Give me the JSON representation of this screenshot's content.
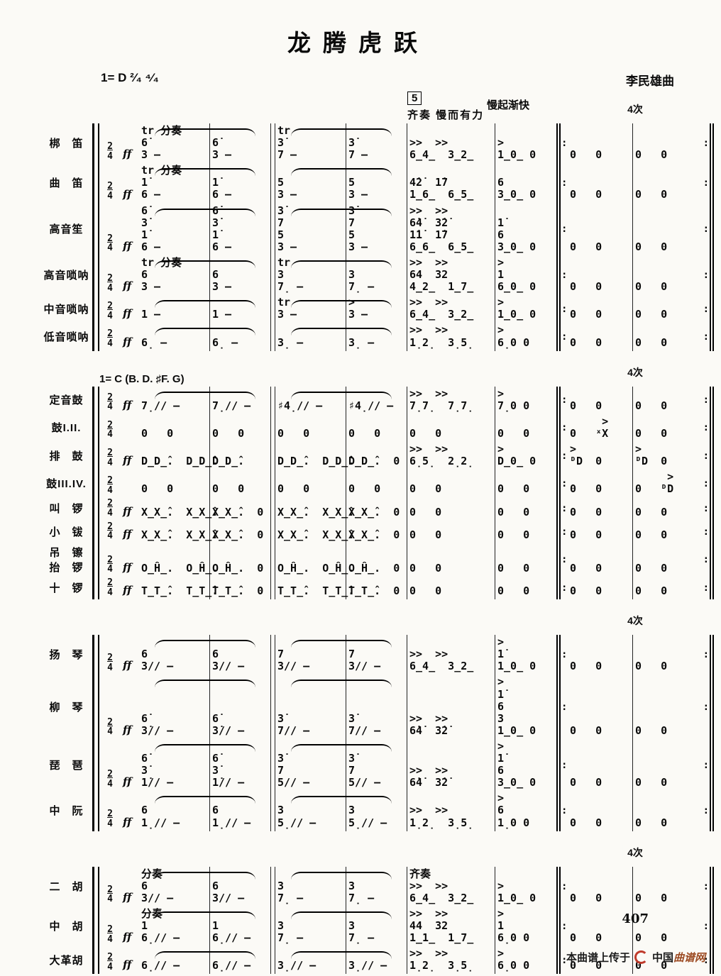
{
  "page": {
    "title": "龙腾虎跃",
    "key_signature": "1= D  ²⁄₄ ⁴⁄₄",
    "composer": "李民雄曲",
    "repeat_dots": ":",
    "page_number": "407",
    "footer_text": "本曲谱上传于",
    "site_prefix": "中国",
    "site_suffix": "曲谱网",
    "brand_color": "#bf3a2b",
    "ink_color": "#0a0a0a"
  },
  "groups": [
    {
      "rehearsal": "5",
      "tutti": "齐奏  慢而有力",
      "tempo": "慢起渐快",
      "times": "4次",
      "rows": [
        {
          "name": "梆　笛",
          "type": "melody",
          "sig": "2\n4",
          "dyn": "ff",
          "c1": "tr 分奏\n6̇\n3 –",
          "c2": "6̇\n3 –",
          "c3": "tr\n3̇\n7 –",
          "c4": "3̇\n7 –",
          "c5": ">>  >>\n6̲4̲  3̲2̲",
          "c6": ">\n1̲0̲ 0",
          "c7": "0   0",
          "c8": "0   0"
        },
        {
          "name": "曲　笛",
          "type": "melody",
          "sig": "2\n4",
          "dyn": "ff",
          "c1": "tr 分奏\n1̇\n6 –",
          "c2": "1̇\n6 –",
          "c3": "5\n3 –",
          "c4": "5\n3 –",
          "c5": "4̇2̇  1̇7\n1̲6̲  6̲5̲",
          "c6": "6\n3̲0̲ 0",
          "c7": "0   0",
          "c8": "0   0"
        },
        {
          "name": "高音笙",
          "type": "melody",
          "sig": "2\n4",
          "dyn": "ff",
          "c1": "6̇\n3̇\n1̇\n6 –",
          "c2": "6̇\n3̇\n1̇\n6 –",
          "c3": "3̇\n7\n5\n3 –",
          "c4": "3̇\n7\n5\n3 –",
          "c5": ">>  >>\n6̇4̇  3̇2̇\n1̇1̇  1̇7\n6̲6̲  6̲5̲",
          "c6": "1̇\n6\n3̲0̲ 0",
          "c7": "0   0",
          "c8": "0   0"
        },
        {
          "name": "高音唢呐",
          "type": "melody",
          "sig": "2\n4",
          "dyn": "ff",
          "c1": "tr 分奏\n6\n3 –",
          "c2": "6\n3 –",
          "c3": "tr\n3\n7̣ –",
          "c4": "3\n7̣ –",
          "c5": ">>  >>\n64  32\n4̲2̲  1̲7̲",
          "c6": ">\n1\n6̲0̲ 0",
          "c7": "0   0",
          "c8": "0   0"
        },
        {
          "name": "中音唢呐",
          "type": "melody",
          "sig": "2\n4",
          "dyn": "ff",
          "c1": "1 –",
          "c2": "1 –",
          "c3": "tr\n3 –",
          "c4": ">\n3 –",
          "c5": ">>  >>\n6̲4̲  3̲2̲",
          "c6": ">\n1̲0̲ 0",
          "c7": "0   0",
          "c8": "0   0"
        },
        {
          "name": "低音唢呐",
          "type": "melody",
          "sig": "2\n4",
          "dyn": "ff",
          "c1": "6̣ –",
          "c2": "6̣ –",
          "c3": "3̣ –",
          "c4": "3̣ –",
          "c5": ">>  >>\n1̣2̣  3̣5̣",
          "c6": ">\n6̣0 0",
          "c7": "0   0",
          "c8": "0   0"
        }
      ]
    },
    {
      "key": "1= C (B. D. ♯F. G)",
      "times": "4次",
      "rows": [
        {
          "name": "定音鼓",
          "type": "melody",
          "sig": "2\n4",
          "dyn": "ff",
          "c1": "7̣∕∕ –",
          "c2": "7̣∕∕ –",
          "c3": "♯4̣∕∕ –",
          "c4": "♯4̣∕∕ –",
          "c5": ">>  >>\n7̣7̣  7̣7̣",
          "c6": ">\n7̣0 0",
          "c7": "0   0",
          "c8": "0   0"
        },
        {
          "name": "鼓I.II.",
          "type": "perc",
          "sig": "2\n4",
          "dyn": "",
          "c1": "0   0",
          "c2": "0   0",
          "c3": "0   0",
          "c4": "0   0",
          "c5": "0   0",
          "c6": "0   0",
          "c7": "     >\n0   ˣX",
          "c8": "0   0"
        },
        {
          "name": "排　鼓",
          "type": "perc",
          "sig": "2\n4",
          "dyn": "ff",
          "c1": "D̲D̲̂.  D̲D̲̂.",
          "c2": "D̲D̲̂.",
          "c3": "D̲D̲̂.  D̲D̲̂.",
          "c4": "D̲D̲̂.  0",
          "c5": ">>  >>\n6̣5̣  2̣2̣",
          "c6": ">\nD̲0̲ 0",
          "c7": ">\nᴰD  0",
          "c8": ">\nᴰD  0"
        },
        {
          "name": "鼓III.IV.",
          "type": "perc",
          "sig": "2\n4",
          "dyn": "",
          "c1": "0   0",
          "c2": "0   0",
          "c3": "0   0",
          "c4": "0   0",
          "c5": "0   0",
          "c6": "0   0",
          "c7": "0   0",
          "c8": "     >\n0   ᴰD"
        },
        {
          "name": "叫　锣",
          "type": "perc",
          "sig": "2\n4",
          "dyn": "ff",
          "c1": "X̲X̲̂.  X̲X̲̂.",
          "c2": "X̲X̲̂.  0",
          "c3": "X̲X̲̂.  X̲X̲̂.",
          "c4": "X̲X̲̂.  0",
          "c5": "0   0",
          "c6": "0   0",
          "c7": "0   0",
          "c8": "0   0"
        },
        {
          "name": "小　钹",
          "type": "perc",
          "sig": "2\n4",
          "dyn": "ff",
          "c1": "X̲X̲̂.  X̲X̲̂.",
          "c2": "X̲X̲̂.  0",
          "c3": "X̲X̲̂.  X̲X̲̂.",
          "c4": "X̲X̲̂.  0",
          "c5": "0   0",
          "c6": "0   0",
          "c7": "0   0",
          "c8": "0   0"
        },
        {
          "name": "吊　镲\n抬　锣",
          "type": "perc",
          "sig": "2\n4",
          "dyn": "ff",
          "c1": "O̲Ĥ̲.  O̲Ĥ̲.",
          "c2": "O̲Ĥ̲.  0",
          "c3": "O̲Ĥ̲.  O̲Ĥ̲.",
          "c4": "O̲Ĥ̲.  0",
          "c5": "0   0",
          "c6": "0   0",
          "c7": "0   0",
          "c8": "0   0"
        },
        {
          "name": "十　锣",
          "type": "perc",
          "sig": "2\n4",
          "dyn": "ff",
          "c1": "T̲T̲̂.  T̲T̲̂.",
          "c2": "T̲T̲̂.  0",
          "c3": "T̲T̲̂.  T̲T̲̂.",
          "c4": "T̲T̲̂.  0",
          "c5": "0   0",
          "c6": "0   0",
          "c7": "0   0",
          "c8": "0   0"
        }
      ]
    },
    {
      "times": "4次",
      "rows": [
        {
          "name": "扬　琴",
          "type": "melody",
          "sig": "2\n4",
          "dyn": "ff",
          "c1": "6\n3∕∕ –",
          "c2": "6\n3∕∕ –",
          "c3": "7\n3∕∕ –",
          "c4": "7\n3∕∕ –",
          "c5": ">>  >>\n6̲4̲  3̲2̲",
          "c6": ">\n1̇\n1̲0̲ 0",
          "c7": "0   0",
          "c8": "0   0"
        },
        {
          "name": "柳　琴",
          "type": "melody",
          "sig": "2\n4",
          "dyn": "ff",
          "c1": "6̇\n3̇∕∕ –",
          "c2": "6̇\n3̇∕∕ –",
          "c3": "3̇\n7∕∕ –",
          "c4": "3̇\n7∕∕ –",
          "c5": ">>  >>\n6̇4̇  3̇2̇",
          "c6": ">\n1̇\n6\n3\n1̲0̲ 0",
          "c7": "0   0",
          "c8": "0   0"
        },
        {
          "name": "琵　琶",
          "type": "melody",
          "sig": "2\n4",
          "dyn": "ff",
          "c1": "6̇\n3̇\n1̇∕∕ –",
          "c2": "6̇\n3̇\n1̇∕∕ –",
          "c3": "3̇\n7\n5∕∕ –",
          "c4": "3̇\n7\n5∕∕ –",
          "c5": ">>  >>\n6̇4̇  3̇2̇",
          "c6": ">\n1̇\n6\n3̲0̲ 0",
          "c7": "0   0",
          "c8": "0   0"
        },
        {
          "name": "中　阮",
          "type": "melody",
          "sig": "2\n4",
          "dyn": "ff",
          "c1": "6\n1̣∕∕ –",
          "c2": "6\n1̣∕∕ –",
          "c3": "3\n5̣∕∕ –",
          "c4": "3\n5̣∕∕ –",
          "c5": ">>  >>\n1̣2̣  3̣5̣",
          "c6": ">\n6\n1̣0 0",
          "c7": "0   0",
          "c8": "0   0"
        }
      ]
    },
    {
      "times": "4次",
      "rows": [
        {
          "name": "二　胡",
          "type": "melody",
          "sig": "2\n4",
          "dyn": "ff",
          "c1": "分奏\n6\n3∕∕ –",
          "c2": "6\n3∕∕ –",
          "c3": "3\n7̣ –",
          "c4": "3\n7̣ –",
          "c5": "齐奏\n>>  >>\n6̲4̲  3̲2̲",
          "c6": ">\n1̲0̲ 0",
          "c7": "0   0",
          "c8": "0   0"
        },
        {
          "name": "中　胡",
          "type": "melody",
          "sig": "2\n4",
          "dyn": "ff",
          "c1": "分奏\n1\n6̣∕∕ –",
          "c2": "1\n6̣∕∕ –",
          "c3": "3\n7̣ –",
          "c4": "3\n7̣ –",
          "c5": ">>  >>\n44  32\n1̲1̲  1̲7̲",
          "c6": ">\n1\n6̣0 0",
          "c7": "0   0",
          "c8": "0   0"
        },
        {
          "name": "大革胡",
          "type": "melody",
          "sig": "2\n4",
          "dyn": "ff",
          "c1": "6̣∕∕ –",
          "c2": "6̣∕∕ –",
          "c3": "3̣∕∕ –",
          "c4": "3̣∕∕ –",
          "c5": ">>  >>\n1̣2̣  3̣5̣",
          "c6": ">\n6̣0 0",
          "c7": "0   0",
          "c8": "0   0"
        }
      ]
    }
  ]
}
